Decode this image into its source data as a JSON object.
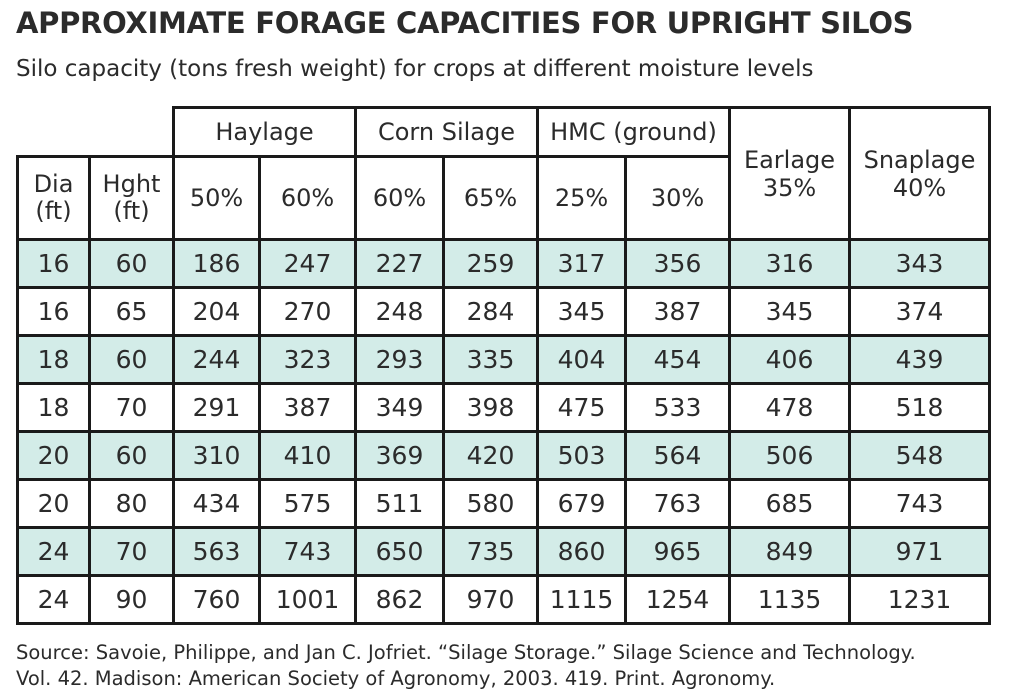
{
  "title": "APPROXIMATE FORAGE CAPACITIES FOR UPRIGHT SILOS",
  "subtitle": "Silo capacity (tons fresh weight) for crops at different moisture levels",
  "table": {
    "groups": [
      "Haylage",
      "Corn Silage",
      "HMC (ground)"
    ],
    "earlage_header": "Earlage",
    "earlage_sub": "35%",
    "snaplage_header": "Snaplage",
    "snaplage_sub": "40%",
    "dia_header": "Dia",
    "dia_unit": "(ft)",
    "hght_header": "Hght",
    "hght_unit": "(ft)",
    "subheaders": [
      "50%",
      "60%",
      "60%",
      "65%",
      "25%",
      "30%"
    ],
    "rows": [
      [
        "16",
        "60",
        "186",
        "247",
        "227",
        "259",
        "317",
        "356",
        "316",
        "343"
      ],
      [
        "16",
        "65",
        "204",
        "270",
        "248",
        "284",
        "345",
        "387",
        "345",
        "374"
      ],
      [
        "18",
        "60",
        "244",
        "323",
        "293",
        "335",
        "404",
        "454",
        "406",
        "439"
      ],
      [
        "18",
        "70",
        "291",
        "387",
        "349",
        "398",
        "475",
        "533",
        "478",
        "518"
      ],
      [
        "20",
        "60",
        "310",
        "410",
        "369",
        "420",
        "503",
        "564",
        "506",
        "548"
      ],
      [
        "20",
        "80",
        "434",
        "575",
        "511",
        "580",
        "679",
        "763",
        "685",
        "743"
      ],
      [
        "24",
        "70",
        "563",
        "743",
        "650",
        "735",
        "860",
        "965",
        "849",
        "971"
      ],
      [
        "24",
        "90",
        "760",
        "1001",
        "862",
        "970",
        "1115",
        "1254",
        "1135",
        "1231"
      ]
    ],
    "row_shading_color": "#d3ece8"
  },
  "source_line1": "Source: Savoie, Philippe, and Jan C. Jofriet. “Silage Storage.” Silage Science and Technology.",
  "source_line2": "Vol. 42. Madison: American Society of Agronomy, 2003. 419. Print. Agronomy."
}
